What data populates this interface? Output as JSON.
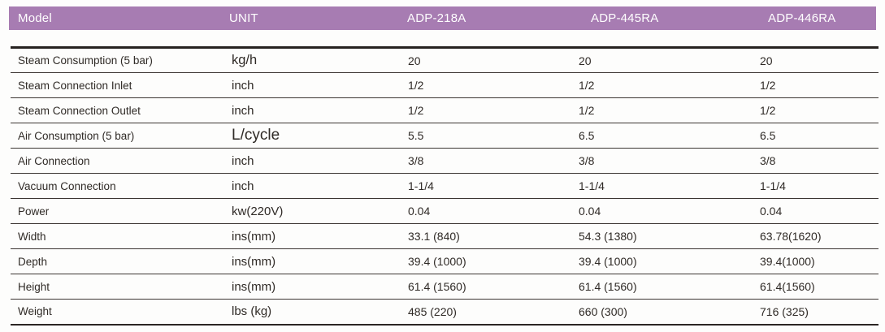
{
  "table": {
    "accent_color": "#a77cb2",
    "text_color": "#2f2a26",
    "header": {
      "model_label": "Model",
      "unit_label": "UNIT",
      "columns": [
        "ADP-218A",
        "ADP-445RA",
        "ADP-446RA"
      ]
    },
    "rows": [
      {
        "label": "Steam Consumption (5 bar)",
        "unit": "kg/h",
        "unit_emphasis": "lg",
        "values": [
          "20",
          "20",
          "20"
        ]
      },
      {
        "label": "Steam Connection Inlet",
        "unit": "inch",
        "unit_emphasis": "",
        "values": [
          "1/2",
          "1/2",
          "1/2"
        ]
      },
      {
        "label": "Steam Connection Outlet",
        "unit": "inch",
        "unit_emphasis": "",
        "values": [
          "1/2",
          "1/2",
          "1/2"
        ]
      },
      {
        "label": "Air Consumption (5 bar)",
        "unit": "L/cycle",
        "unit_emphasis": "xl",
        "values": [
          "5.5",
          "6.5",
          "6.5"
        ]
      },
      {
        "label": "Air Connection",
        "unit": "inch",
        "unit_emphasis": "",
        "values": [
          "3/8",
          "3/8",
          "3/8"
        ]
      },
      {
        "label": "Vacuum Connection",
        "unit": "inch",
        "unit_emphasis": "",
        "values": [
          "1-1/4",
          "1-1/4",
          "1-1/4"
        ]
      },
      {
        "label": "Power",
        "unit": "kw(220V)",
        "unit_emphasis": "",
        "values": [
          "0.04",
          "0.04",
          "0.04"
        ]
      },
      {
        "label": "Width",
        "unit": "ins(mm)",
        "unit_emphasis": "",
        "values": [
          "33.1 (840)",
          "54.3 (1380)",
          "63.78(1620)"
        ]
      },
      {
        "label": "Depth",
        "unit": "ins(mm)",
        "unit_emphasis": "",
        "values": [
          "39.4 (1000)",
          "39.4 (1000)",
          "39.4(1000)"
        ]
      },
      {
        "label": "Height",
        "unit": "ins(mm)",
        "unit_emphasis": "",
        "values": [
          "61.4 (1560)",
          "61.4 (1560)",
          "61.4(1560)"
        ]
      },
      {
        "label": "Weight",
        "unit": "lbs (kg)",
        "unit_emphasis": "",
        "values": [
          "485 (220)",
          "660 (300)",
          "716 (325)"
        ]
      }
    ]
  }
}
